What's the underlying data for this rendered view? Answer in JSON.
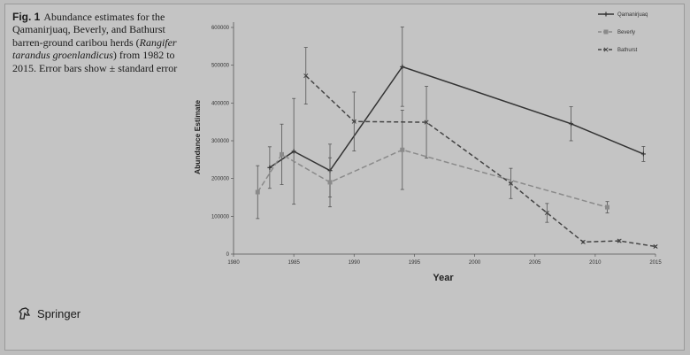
{
  "caption": {
    "label": "Fig. 1",
    "pre": "Abundance estimates for the Qamanirjuaq, Beverly, and Bathurst barren-ground caribou herds (",
    "species": "Rangifer tarandus groenlandicus",
    "post": ") from 1982 to 2015. Error bars show ± standard error"
  },
  "publisher": "Springer",
  "chart_data": {
    "type": "line",
    "title": "",
    "xlabel": "Year",
    "ylabel": "Abundance Estimate",
    "xlim": [
      1980,
      2015
    ],
    "ylim": [
      0,
      600000
    ],
    "xticks": [
      1980,
      1985,
      1990,
      1995,
      2000,
      2005,
      2010,
      2015
    ],
    "yticks": [
      0,
      100000,
      200000,
      300000,
      400000,
      500000,
      600000
    ],
    "xtick_labels": [
      "1980",
      "1985",
      "1990",
      "1995",
      "2000",
      "2005",
      "2010",
      "2015"
    ],
    "ytick_labels": [
      "0",
      "100000",
      "200000",
      "300000",
      "400000",
      "500000",
      "600000"
    ],
    "legend_position": "top-right",
    "grid": false,
    "series": [
      {
        "name": "Qamanirjuaq",
        "color": "#333333",
        "dash": "",
        "marker": "plus",
        "x": [
          1983,
          1985,
          1988,
          1994,
          2008,
          2014
        ],
        "y": [
          229000,
          272000,
          221000,
          496000,
          345000,
          265000
        ],
        "err": [
          55000,
          140000,
          70000,
          105000,
          45000,
          20000
        ]
      },
      {
        "name": "Beverly",
        "color": "#8a8a8a",
        "dash": "6,3",
        "marker": "square",
        "x": [
          1982,
          1984,
          1988,
          1994,
          2011
        ],
        "y": [
          164000,
          264000,
          190000,
          276000,
          124000
        ],
        "err": [
          70000,
          80000,
          65000,
          105000,
          15000
        ]
      },
      {
        "name": "Bathurst",
        "color": "#444444",
        "dash": "5,3",
        "marker": "x",
        "x": [
          1986,
          1990,
          1996,
          2003,
          2006,
          2009,
          2012,
          2015
        ],
        "y": [
          472000,
          351000,
          349000,
          187000,
          109000,
          32000,
          35000,
          20000
        ],
        "err": [
          75000,
          78000,
          95000,
          40000,
          25000,
          3000,
          3000,
          2000
        ]
      }
    ]
  }
}
